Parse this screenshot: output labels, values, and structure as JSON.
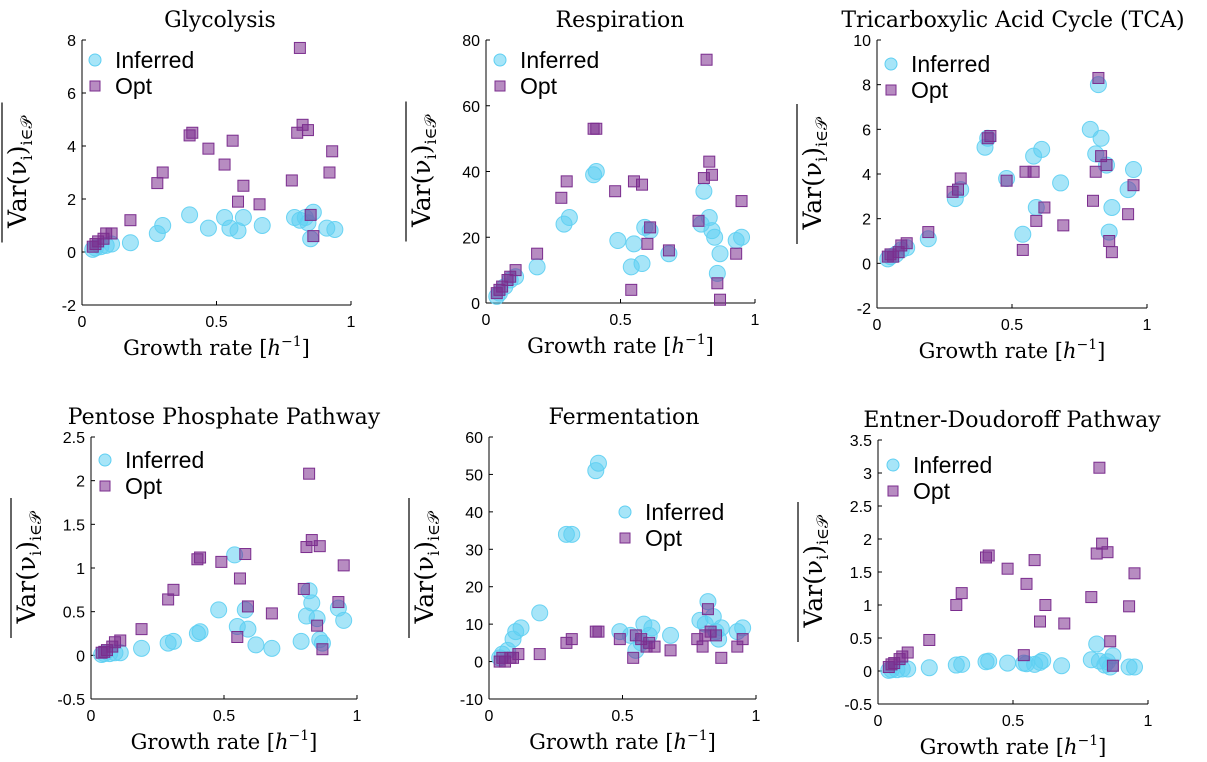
{
  "figure": {
    "xlabel_text": "Growth rate [",
    "xlabel_unit": "h",
    "xlabel_exp": "−1",
    "xlabel_close": "]",
    "ylabel_main": "Var(ν",
    "ylabel_sub": "i",
    "ylabel_close": ")",
    "ylabel_set": "i∈𝒫",
    "legend_inferred": "Inferred",
    "legend_opt": "Opt",
    "colors": {
      "inferred": "#5ECFF2",
      "opt": "#7B2D8E"
    }
  },
  "chart_data": [
    {
      "type": "scatter",
      "title": "Glycolysis",
      "xlabel": "Growth rate [h^-1]",
      "ylabel": "Var(ν_i)_{i∈P}",
      "xlim": [
        0,
        1
      ],
      "ylim": [
        -2,
        8
      ],
      "xticks": [
        "0",
        "0.5",
        "1"
      ],
      "yticks": [
        "-2",
        "0",
        "2",
        "4",
        "6",
        "8"
      ],
      "legend": "top-left",
      "series": [
        {
          "name": "Inferred",
          "x": [
            0.04,
            0.05,
            0.07,
            0.09,
            0.11,
            0.18,
            0.28,
            0.3,
            0.4,
            0.47,
            0.53,
            0.55,
            0.58,
            0.6,
            0.67,
            0.79,
            0.81,
            0.83,
            0.84,
            0.85,
            0.86,
            0.91,
            0.94
          ],
          "y": [
            0.1,
            0.15,
            0.2,
            0.25,
            0.3,
            0.35,
            0.7,
            1.0,
            1.4,
            0.9,
            1.3,
            0.9,
            0.8,
            1.3,
            1.0,
            1.3,
            1.2,
            1.3,
            1.1,
            0.5,
            1.5,
            0.9,
            0.85
          ]
        },
        {
          "name": "Opt",
          "x": [
            0.04,
            0.05,
            0.06,
            0.08,
            0.09,
            0.11,
            0.18,
            0.28,
            0.3,
            0.4,
            0.41,
            0.47,
            0.53,
            0.56,
            0.58,
            0.6,
            0.66,
            0.78,
            0.8,
            0.81,
            0.82,
            0.84,
            0.85,
            0.86,
            0.92,
            0.93
          ],
          "y": [
            0.2,
            0.3,
            0.4,
            0.5,
            0.7,
            0.7,
            1.2,
            2.6,
            3.0,
            4.4,
            4.5,
            3.9,
            3.3,
            4.2,
            1.9,
            2.5,
            1.8,
            2.7,
            4.5,
            7.7,
            4.8,
            4.6,
            1.4,
            0.6,
            3.0,
            3.8
          ]
        }
      ]
    },
    {
      "type": "scatter",
      "title": "Respiration",
      "xlabel": "Growth rate [h^-1]",
      "ylabel": "Var(ν_i)_{i∈P}",
      "xlim": [
        0,
        1
      ],
      "ylim": [
        0,
        80
      ],
      "xticks": [
        "0",
        "0.5",
        "1"
      ],
      "yticks": [
        "0",
        "20",
        "40",
        "60",
        "80"
      ],
      "legend": "top-left",
      "series": [
        {
          "name": "Inferred",
          "x": [
            0.04,
            0.05,
            0.07,
            0.09,
            0.11,
            0.19,
            0.29,
            0.31,
            0.4,
            0.41,
            0.49,
            0.54,
            0.55,
            0.58,
            0.59,
            0.61,
            0.68,
            0.8,
            0.81,
            0.83,
            0.84,
            0.85,
            0.86,
            0.87,
            0.93,
            0.95
          ],
          "y": [
            2,
            3,
            5,
            7,
            8,
            11,
            24,
            26,
            39,
            40,
            19,
            11,
            18,
            12,
            23,
            22,
            15,
            24,
            34,
            26,
            22,
            20,
            9,
            15,
            19,
            20
          ]
        },
        {
          "name": "Opt",
          "x": [
            0.04,
            0.05,
            0.06,
            0.08,
            0.09,
            0.11,
            0.19,
            0.28,
            0.3,
            0.4,
            0.41,
            0.48,
            0.54,
            0.55,
            0.58,
            0.6,
            0.61,
            0.68,
            0.79,
            0.81,
            0.82,
            0.83,
            0.84,
            0.86,
            0.87,
            0.93,
            0.95
          ],
          "y": [
            3,
            4,
            5,
            7,
            8,
            10,
            15,
            32,
            37,
            53,
            53,
            34,
            4,
            37,
            36,
            18,
            23,
            16,
            25,
            38,
            74,
            43,
            39,
            6,
            1,
            15,
            31
          ]
        }
      ]
    },
    {
      "type": "scatter",
      "title": "Tricarboxylic Acid Cycle (TCA)",
      "xlabel": "Growth rate [h^-1]",
      "ylabel": "Var(ν_i)_{i∈P}",
      "xlim": [
        0,
        1
      ],
      "ylim": [
        -2,
        10
      ],
      "xticks": [
        "0",
        "0.5",
        "1"
      ],
      "yticks": [
        "-2",
        "0",
        "2",
        "4",
        "6",
        "8",
        "10"
      ],
      "legend": "top-left",
      "series": [
        {
          "name": "Inferred",
          "x": [
            0.04,
            0.05,
            0.07,
            0.09,
            0.11,
            0.19,
            0.29,
            0.31,
            0.4,
            0.41,
            0.48,
            0.54,
            0.58,
            0.59,
            0.61,
            0.68,
            0.79,
            0.81,
            0.82,
            0.83,
            0.85,
            0.86,
            0.87,
            0.93,
            0.95
          ],
          "y": [
            0.2,
            0.3,
            0.4,
            0.6,
            0.7,
            1.1,
            2.9,
            3.3,
            5.2,
            5.6,
            3.8,
            1.3,
            4.8,
            2.5,
            5.1,
            3.6,
            6.0,
            4.9,
            8.0,
            5.6,
            4.4,
            1.4,
            2.5,
            3.3,
            4.2
          ]
        },
        {
          "name": "Opt",
          "x": [
            0.04,
            0.05,
            0.06,
            0.08,
            0.09,
            0.11,
            0.19,
            0.28,
            0.3,
            0.31,
            0.41,
            0.42,
            0.48,
            0.54,
            0.55,
            0.58,
            0.59,
            0.62,
            0.69,
            0.8,
            0.81,
            0.82,
            0.83,
            0.85,
            0.86,
            0.87,
            0.93,
            0.95
          ],
          "y": [
            0.3,
            0.4,
            0.3,
            0.5,
            0.8,
            0.9,
            1.4,
            3.2,
            3.3,
            3.8,
            5.6,
            5.7,
            3.7,
            0.6,
            4.1,
            4.1,
            1.9,
            2.5,
            1.7,
            2.8,
            4.1,
            8.3,
            4.8,
            4.4,
            1.0,
            0.5,
            2.2,
            3.5
          ]
        }
      ]
    },
    {
      "type": "scatter",
      "title": "Pentose Phosphate Pathway",
      "xlabel": "Growth rate [h^-1]",
      "ylabel": "Var(ν_i)_{i∈P}",
      "xlim": [
        0,
        1
      ],
      "ylim": [
        -0.5,
        2.5
      ],
      "xticks": [
        "0",
        "0.5",
        "1"
      ],
      "yticks": [
        "-0.5",
        "0",
        "0.5",
        "1",
        "1.5",
        "2",
        "2.5"
      ],
      "legend": "top-left",
      "series": [
        {
          "name": "Inferred",
          "x": [
            0.04,
            0.05,
            0.07,
            0.09,
            0.11,
            0.19,
            0.29,
            0.31,
            0.4,
            0.41,
            0.48,
            0.54,
            0.55,
            0.58,
            0.59,
            0.62,
            0.68,
            0.79,
            0.81,
            0.82,
            0.83,
            0.85,
            0.86,
            0.87,
            0.93,
            0.95
          ],
          "y": [
            0.01,
            0.02,
            0.02,
            0.03,
            0.03,
            0.08,
            0.14,
            0.16,
            0.25,
            0.27,
            0.52,
            1.15,
            0.33,
            0.52,
            0.3,
            0.12,
            0.08,
            0.16,
            0.45,
            0.74,
            0.6,
            0.42,
            0.18,
            0.14,
            0.54,
            0.4
          ]
        },
        {
          "name": "Opt",
          "x": [
            0.04,
            0.05,
            0.06,
            0.08,
            0.09,
            0.11,
            0.19,
            0.29,
            0.31,
            0.4,
            0.41,
            0.49,
            0.55,
            0.56,
            0.58,
            0.59,
            0.68,
            0.8,
            0.81,
            0.82,
            0.83,
            0.85,
            0.86,
            0.87,
            0.93,
            0.95
          ],
          "y": [
            0.03,
            0.04,
            0.06,
            0.1,
            0.15,
            0.17,
            0.3,
            0.64,
            0.75,
            1.1,
            1.12,
            1.07,
            0.21,
            0.88,
            1.16,
            0.56,
            0.48,
            0.76,
            1.24,
            2.08,
            1.32,
            0.34,
            1.25,
            0.07,
            0.61,
            1.03
          ]
        }
      ]
    },
    {
      "type": "scatter",
      "title": "Fermentation",
      "xlabel": "Growth rate [h^-1]",
      "ylabel": "Var(ν_i)_{i∈P}",
      "xlim": [
        0,
        1
      ],
      "ylim": [
        -10,
        60
      ],
      "xticks": [
        "0",
        "0.5",
        "1"
      ],
      "yticks": [
        "-10",
        "0",
        "10",
        "20",
        "30",
        "40",
        "50",
        "60"
      ],
      "legend": "upper-middle-right",
      "series": [
        {
          "name": "Inferred",
          "x": [
            0.04,
            0.05,
            0.07,
            0.09,
            0.1,
            0.12,
            0.19,
            0.29,
            0.31,
            0.4,
            0.41,
            0.49,
            0.53,
            0.55,
            0.57,
            0.58,
            0.6,
            0.61,
            0.68,
            0.79,
            0.81,
            0.82,
            0.84,
            0.85,
            0.86,
            0.87,
            0.93,
            0.95
          ],
          "y": [
            1,
            2,
            3,
            6,
            8,
            9,
            13,
            34,
            34,
            51,
            53,
            8,
            7,
            3,
            5,
            10,
            7,
            9,
            7,
            11,
            10,
            16,
            12,
            8,
            6,
            9,
            8,
            9
          ]
        },
        {
          "name": "Opt",
          "x": [
            0.04,
            0.05,
            0.06,
            0.08,
            0.09,
            0.11,
            0.19,
            0.29,
            0.31,
            0.4,
            0.41,
            0.49,
            0.54,
            0.55,
            0.57,
            0.59,
            0.6,
            0.62,
            0.68,
            0.78,
            0.8,
            0.81,
            0.82,
            0.83,
            0.85,
            0.87,
            0.93,
            0.95
          ],
          "y": [
            0,
            1,
            0,
            1,
            1,
            2,
            2,
            5,
            6,
            8,
            8,
            6,
            1,
            7,
            6,
            4,
            5,
            4,
            3,
            6,
            4,
            7,
            14,
            8,
            7,
            1,
            4,
            6
          ]
        }
      ]
    },
    {
      "type": "scatter",
      "title": "Entner-Doudoroff Pathway",
      "xlabel": "Growth rate [h^-1]",
      "ylabel": "Var(ν_i)_{i∈P}",
      "xlim": [
        0,
        1
      ],
      "ylim": [
        -0.5,
        3.5
      ],
      "xticks": [
        "0",
        "0.5",
        "1"
      ],
      "yticks": [
        "-0.5",
        "0",
        "0.5",
        "1",
        "1.5",
        "2",
        "2.5",
        "3",
        "3.5"
      ],
      "legend": "top-left",
      "series": [
        {
          "name": "Inferred",
          "x": [
            0.04,
            0.05,
            0.07,
            0.09,
            0.11,
            0.19,
            0.29,
            0.31,
            0.4,
            0.41,
            0.48,
            0.54,
            0.55,
            0.58,
            0.6,
            0.61,
            0.68,
            0.79,
            0.81,
            0.82,
            0.84,
            0.85,
            0.86,
            0.87,
            0.93,
            0.95
          ],
          "y": [
            0.01,
            0.02,
            0.02,
            0.03,
            0.03,
            0.05,
            0.09,
            0.1,
            0.14,
            0.15,
            0.12,
            0.12,
            0.11,
            0.1,
            0.13,
            0.16,
            0.08,
            0.17,
            0.41,
            0.15,
            0.09,
            0.14,
            0.06,
            0.23,
            0.06,
            0.06
          ]
        },
        {
          "name": "Opt",
          "x": [
            0.04,
            0.05,
            0.06,
            0.08,
            0.09,
            0.11,
            0.19,
            0.29,
            0.31,
            0.4,
            0.41,
            0.48,
            0.54,
            0.55,
            0.58,
            0.6,
            0.62,
            0.69,
            0.79,
            0.81,
            0.82,
            0.83,
            0.85,
            0.86,
            0.87,
            0.93,
            0.95
          ],
          "y": [
            0.06,
            0.1,
            0.12,
            0.18,
            0.22,
            0.28,
            0.47,
            1.0,
            1.18,
            1.72,
            1.75,
            1.55,
            0.24,
            1.32,
            1.68,
            0.75,
            1.0,
            0.72,
            1.12,
            1.78,
            3.08,
            1.93,
            1.8,
            0.45,
            0.08,
            0.98,
            1.48
          ]
        }
      ]
    }
  ]
}
